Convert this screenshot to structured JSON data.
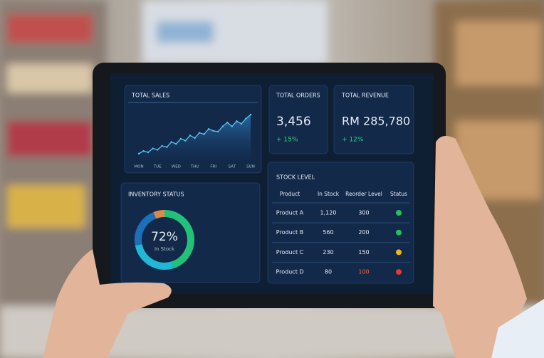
{
  "total_sales": {
    "title": "TOTAL SALES",
    "chart_data": {
      "type": "line",
      "color": "#5cc4f0",
      "x": [
        0,
        0.25,
        0.5,
        0.75,
        1,
        1.25,
        1.5,
        1.75,
        2,
        2.25,
        2.5,
        2.75,
        3,
        3.25,
        3.5,
        3.75,
        4,
        4.25,
        4.5,
        4.75,
        5,
        5.25,
        5.5,
        5.75,
        6
      ],
      "values": [
        10,
        14,
        12,
        18,
        16,
        22,
        20,
        28,
        25,
        33,
        30,
        38,
        34,
        42,
        40,
        48,
        45,
        44,
        52,
        58,
        52,
        60,
        56,
        64,
        70
      ],
      "xlim": [
        0,
        6
      ],
      "ylim": [
        0,
        80
      ],
      "xticks": [
        {
          "value": 0,
          "label": "MON"
        },
        {
          "value": 1,
          "label": "TUE"
        },
        {
          "value": 2,
          "label": "WED"
        },
        {
          "value": 3,
          "label": "THU"
        },
        {
          "value": 4,
          "label": "FRI"
        },
        {
          "value": 5,
          "label": "SAT"
        },
        {
          "value": 6,
          "label": "SUN"
        }
      ]
    }
  },
  "total_orders": {
    "title": "TOTAL ORDERS",
    "value": "3,456",
    "change": "+ 15%"
  },
  "total_revenue": {
    "title": "TOTAL REVENUE",
    "value": "RM 285,780",
    "change": "+ 12%"
  },
  "inventory": {
    "title": "INVENTORY STATUS",
    "center_value": "72%",
    "center_label": "In Stock",
    "chart_data": {
      "type": "donut",
      "values": [
        45,
        27,
        22,
        6
      ],
      "colors": [
        "#22c17a",
        "#1fb8d6",
        "#1d6fb8",
        "#e0884a"
      ]
    }
  },
  "stock": {
    "title": "STOCK LEVEL",
    "headers": [
      "Product",
      "In Stock",
      "Reorder Level",
      "Status"
    ],
    "rows": [
      {
        "product": "Product A",
        "in_stock": "1,120",
        "reorder_level": "300",
        "status_color": "#22c15e",
        "reorder_color": "#e6edf5"
      },
      {
        "product": "Product B",
        "in_stock": "560",
        "reorder_level": "200",
        "status_color": "#22c15e",
        "reorder_color": "#e6edf5"
      },
      {
        "product": "Product C",
        "in_stock": "230",
        "reorder_level": "150",
        "status_color": "#f0b416",
        "reorder_color": "#e6edf5"
      },
      {
        "product": "Product D",
        "in_stock": "80",
        "reorder_level": "100",
        "status_color": "#e53935",
        "reorder_color": "#f06a4a"
      }
    ]
  }
}
